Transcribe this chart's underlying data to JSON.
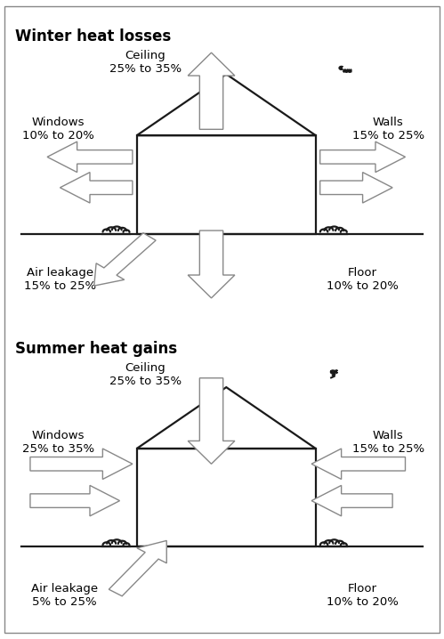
{
  "title1": "Winter heat losses",
  "title2": "Summer heat gains",
  "winter_labels": {
    "ceiling": "Ceiling\n25% to 35%",
    "windows": "Windows\n10% to 20%",
    "walls": "Walls\n15% to 25%",
    "air_leakage": "Air leakage\n15% to 25%",
    "floor": "Floor\n10% to 20%"
  },
  "summer_labels": {
    "ceiling": "Ceiling\n25% to 35%",
    "windows": "Windows\n25% to 35%",
    "walls": "Walls\n15% to 25%",
    "air_leakage": "Air leakage\n5% to 25%",
    "floor": "Floor\n10% to 20%"
  },
  "house_color": "#1a1a1a",
  "arrow_color": "#aaaaaa",
  "arrow_edge_color": "#888888",
  "background_color": "#ffffff",
  "title_fontsize": 12,
  "label_fontsize": 9.5
}
